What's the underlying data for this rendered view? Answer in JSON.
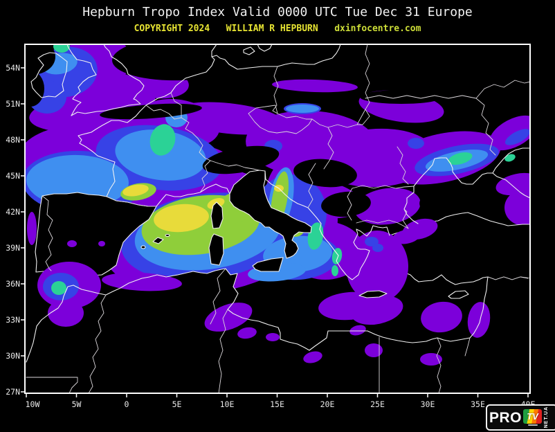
{
  "header": {
    "title": "Hepburn Tropo Index Valid 0000 UTC Tue Dec 31 Europe",
    "copyright": "COPYRIGHT 2024",
    "author": "WILLIAM R HEPBURN",
    "site": "dxinfocentre.com"
  },
  "map": {
    "lat_labels": [
      "54N",
      "51N",
      "48N",
      "45N",
      "42N",
      "39N",
      "36N",
      "33N",
      "30N",
      "27N"
    ],
    "lon_labels": [
      "10W",
      "5W",
      "0",
      "5E",
      "10E",
      "15E",
      "20E",
      "25E",
      "30E",
      "35E",
      "40E"
    ],
    "palette": {
      "background": "#000000",
      "coastline": "#f2f2f2",
      "tier1_purple": "#7c00da",
      "tier2_blue": "#3742e6",
      "tier3_lightblue": "#3f8ff0",
      "tier4_teal": "#2bd296",
      "tier5_green": "#8fce3a",
      "tier6_yellow": "#e8db3a"
    }
  },
  "logo": {
    "pro": "PRO",
    "tv": "TV",
    "netua": "NET.UA"
  }
}
